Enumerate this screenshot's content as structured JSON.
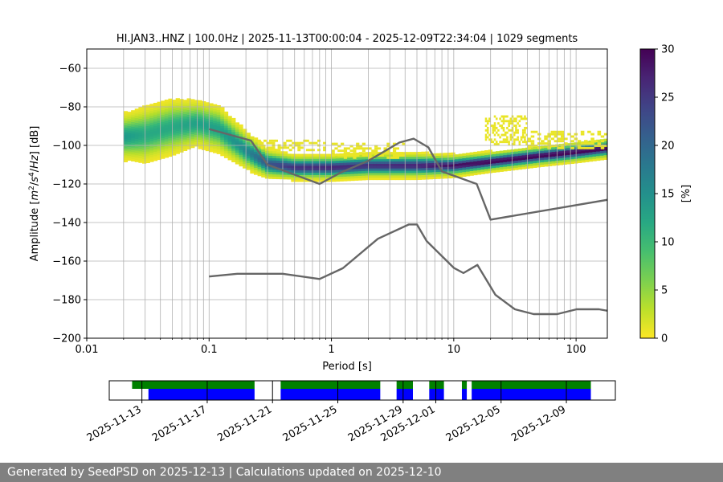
{
  "chart_data": [
    {
      "type": "heatmap",
      "title": "HI.JAN3..HNZ | 100.0Hz | 2025-11-13T00:00:04 - 2025-12-09T22:34:04 | 1029 segments",
      "xlabel": "Period [s]",
      "ylabel_parts": [
        "Amplitude [",
        "m",
        "2",
        "/",
        "s",
        "4",
        "/",
        "Hz",
        "] [dB]"
      ],
      "x_scale": "log",
      "xlim": [
        0.01,
        180
      ],
      "ylim": [
        -200,
        -50
      ],
      "grid": true,
      "x_tick_labels": [
        {
          "value": 0.01,
          "label": "0.01"
        },
        {
          "value": 0.1,
          "label": "0.1"
        },
        {
          "value": 1,
          "label": "1"
        },
        {
          "value": 10,
          "label": "10"
        },
        {
          "value": 100,
          "label": "100"
        }
      ],
      "y_ticks": [
        -60,
        -80,
        -100,
        -120,
        -140,
        -160,
        -180,
        -200
      ],
      "y_tick_labels": [
        "−60",
        "−80",
        "−100",
        "−120",
        "−140",
        "−160",
        "−180",
        "−200"
      ],
      "colorbar": {
        "label": "[%]",
        "range": [
          0,
          30
        ],
        "ticks": [
          0,
          5,
          10,
          15,
          20,
          25,
          30
        ],
        "colormap": "viridis_r"
      },
      "density_ridge": [
        {
          "x": 0.02,
          "y": -96,
          "spread": 5,
          "peak": 14
        },
        {
          "x": 0.03,
          "y": -95,
          "spread": 6,
          "peak": 12
        },
        {
          "x": 0.05,
          "y": -91,
          "spread": 6,
          "peak": 12
        },
        {
          "x": 0.08,
          "y": -89,
          "spread": 5,
          "peak": 13
        },
        {
          "x": 0.12,
          "y": -92,
          "spread": 5,
          "peak": 13
        },
        {
          "x": 0.2,
          "y": -103,
          "spread": 4,
          "peak": 16
        },
        {
          "x": 0.3,
          "y": -110,
          "spread": 3,
          "peak": 22
        },
        {
          "x": 0.5,
          "y": -112,
          "spread": 2.5,
          "peak": 26
        },
        {
          "x": 1,
          "y": -112,
          "spread": 2.5,
          "peak": 27
        },
        {
          "x": 2,
          "y": -111,
          "spread": 2.5,
          "peak": 26
        },
        {
          "x": 5,
          "y": -111,
          "spread": 2.5,
          "peak": 27
        },
        {
          "x": 10,
          "y": -111,
          "spread": 2.2,
          "peak": 29
        },
        {
          "x": 20,
          "y": -109,
          "spread": 2,
          "peak": 30
        },
        {
          "x": 50,
          "y": -106,
          "spread": 2,
          "peak": 30
        },
        {
          "x": 100,
          "y": -104,
          "spread": 2,
          "peak": 30
        },
        {
          "x": 180,
          "y": -102,
          "spread": 2,
          "peak": 30
        }
      ],
      "sparse_noise_patches": [
        {
          "x0": 0.25,
          "x1": 0.9,
          "y0": -97,
          "y1": -103
        },
        {
          "x0": 1.0,
          "x1": 4.0,
          "y0": -99,
          "y1": -107
        },
        {
          "x0": 18,
          "x1": 40,
          "y0": -85,
          "y1": -100
        },
        {
          "x0": 40,
          "x1": 180,
          "y0": -93,
          "y1": -102
        }
      ],
      "series": [
        {
          "name": "",
          "x": [
            0.1,
            0.22,
            0.3,
            0.8,
            1.2,
            2.0,
            3.6,
            4.7,
            6.2,
            8.0,
            15.4,
            20.0,
            189.5
          ],
          "y": [
            -91.5,
            -97.5,
            -110.0,
            -120.0,
            -114.0,
            -108.0,
            -98.5,
            -96.5,
            -101.0,
            -113.5,
            -120.0,
            -138.5,
            -128.0
          ]
        },
        {
          "name": "",
          "x": [
            0.1,
            0.17,
            0.4,
            0.8,
            1.24,
            2.4,
            4.3,
            5.0,
            6.0,
            10.0,
            12.0,
            15.6,
            21.9,
            31.6,
            45.0,
            70.0,
            101.0,
            154.0,
            189.5
          ],
          "y": [
            -168.0,
            -166.6,
            -166.6,
            -169.3,
            -163.7,
            -148.4,
            -141.0,
            -141.0,
            -149.6,
            -163.5,
            -166.2,
            -162.0,
            -177.5,
            -185.0,
            -187.5,
            -187.5,
            -185.0,
            -185.0,
            -186.0
          ]
        }
      ]
    },
    {
      "type": "timeline",
      "x_tick_labels": [
        "2025-11-13",
        "2025-11-17",
        "2025-11-21",
        "2025-11-25",
        "2025-11-29",
        "2025-12-01",
        "2025-12-05",
        "2025-12-09"
      ],
      "tick_days_from_nov11": [
        2,
        6,
        10,
        14,
        18,
        20,
        24,
        28
      ],
      "xlim_days_from_nov11": [
        0,
        31
      ],
      "rows": [
        {
          "name": "",
          "color": "#008000",
          "intervals": [
            [
              1.4,
              8.9
            ],
            [
              10.5,
              16.6
            ],
            [
              17.6,
              18.6
            ],
            [
              19.6,
              20.5
            ],
            [
              21.6,
              21.9
            ],
            [
              22.2,
              29.5
            ]
          ]
        },
        {
          "name": "",
          "color": "#0000ff",
          "intervals": [
            [
              2.4,
              8.9
            ],
            [
              10.5,
              16.6
            ],
            [
              17.6,
              18.6
            ],
            [
              19.6,
              20.5
            ],
            [
              21.6,
              21.9
            ],
            [
              22.2,
              29.5
            ]
          ]
        }
      ]
    }
  ],
  "footer": {
    "text": "Generated by SeedPSD on 2025-12-13 | Calculations updated on 2025-12-10"
  },
  "colors": {
    "reference_lines": "#666666",
    "grid": "#b0b0b0",
    "footer_bg": "#808080"
  }
}
